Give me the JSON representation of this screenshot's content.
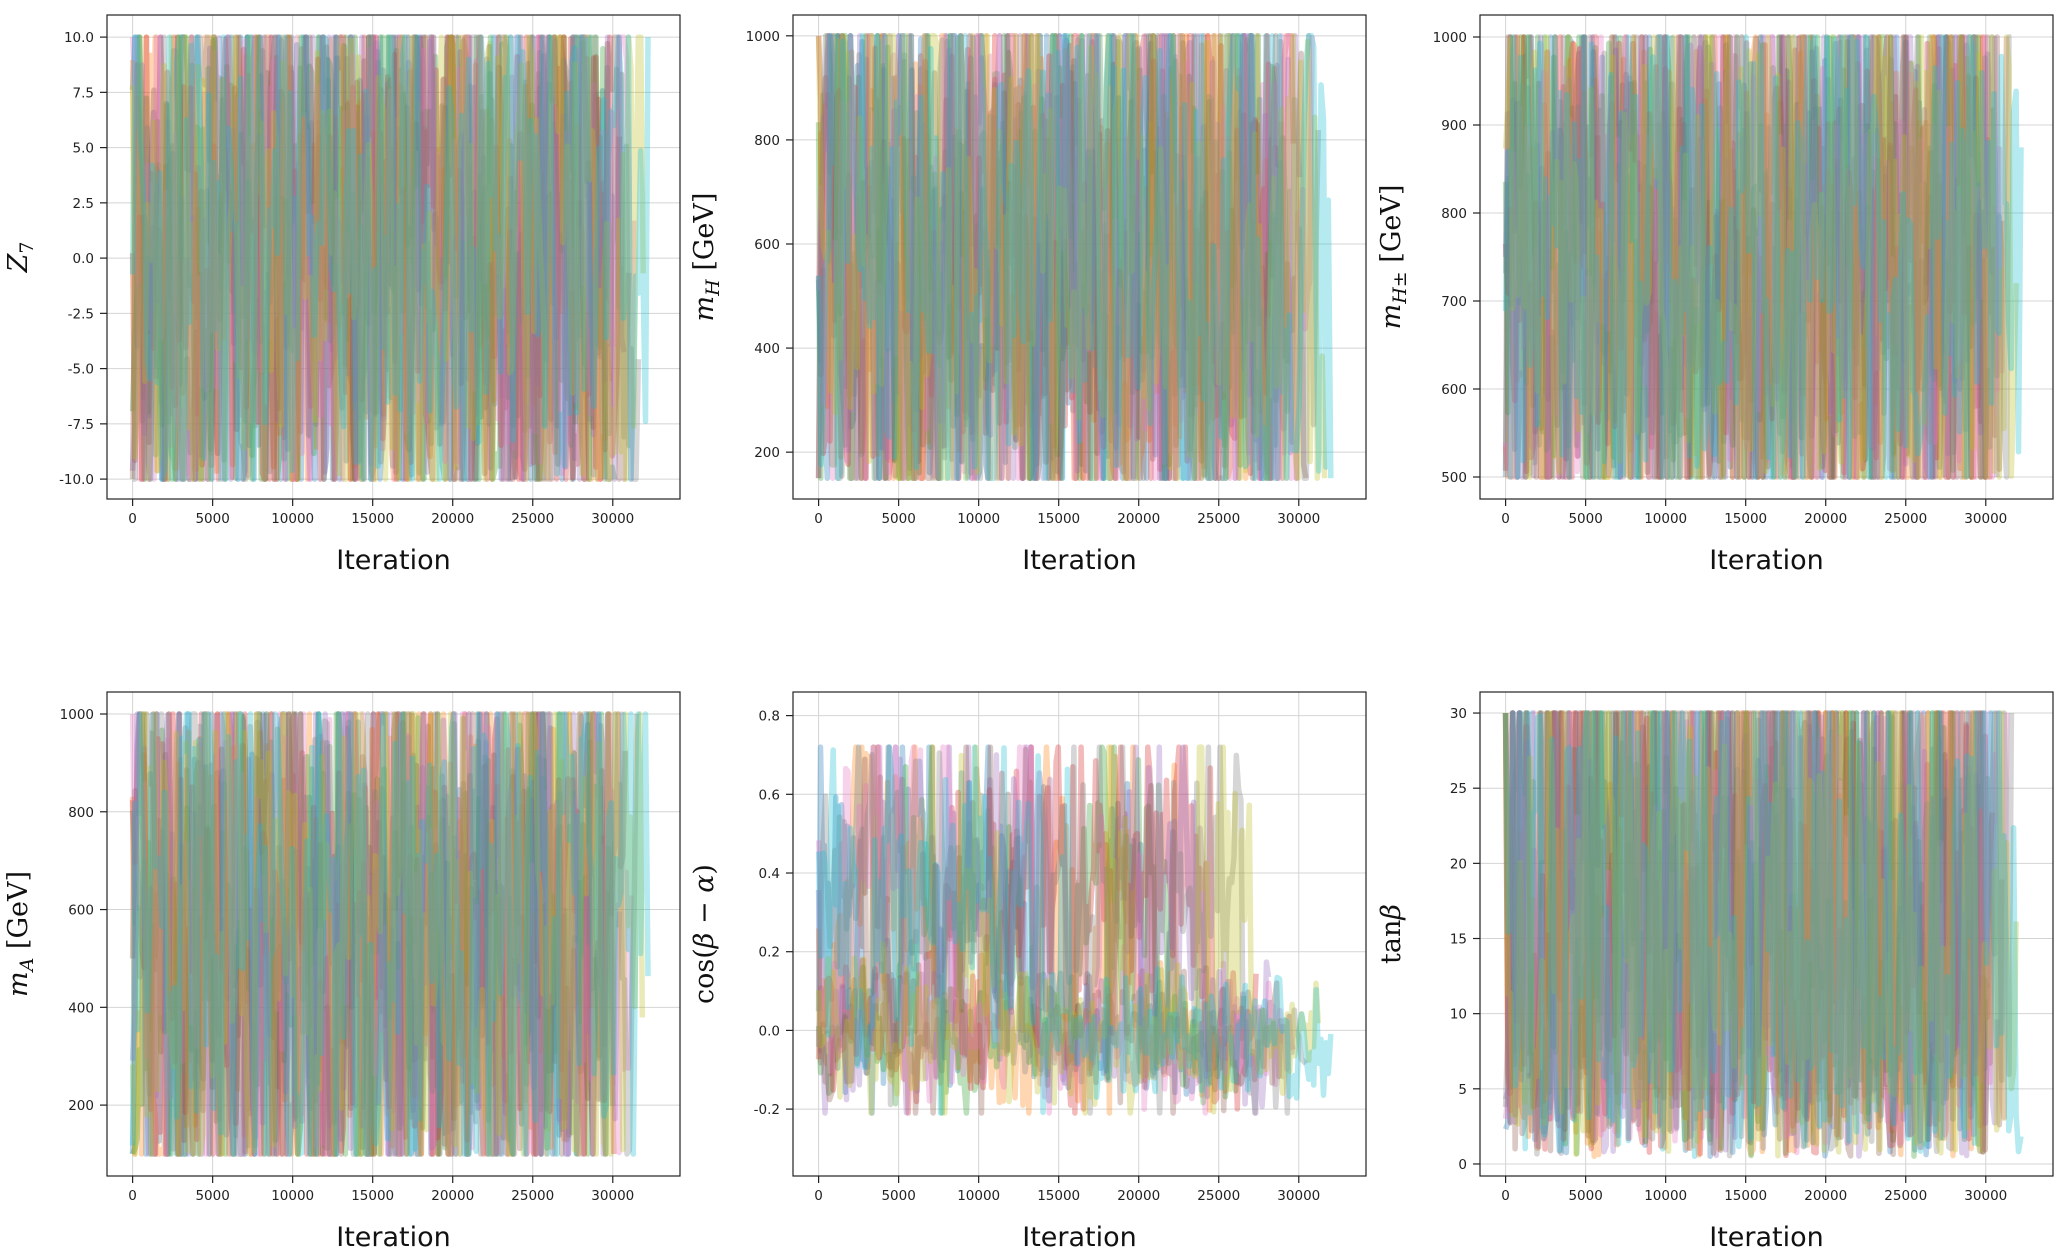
{
  "palette": [
    "#1f77b4",
    "#ff7f0e",
    "#2ca02c",
    "#d62728",
    "#9467bd",
    "#8c564b",
    "#e377c2",
    "#7f7f7f",
    "#bcbd22",
    "#17becf"
  ],
  "chart_data": [
    {
      "type": "line",
      "title": "",
      "xlabel": "Iteration",
      "ylabel": "Z_7",
      "ylabel_parts": [
        {
          "t": "Z",
          "it": true
        },
        {
          "t": "7",
          "sub": true
        }
      ],
      "xlim": [
        -1600,
        34200
      ],
      "ylim": [
        -10.9,
        11.0
      ],
      "xticks": [
        0,
        5000,
        10000,
        15000,
        20000,
        25000,
        30000
      ],
      "xtick_labels": [
        "0",
        "5000",
        "10000",
        "15000",
        "20000",
        "25000",
        "30000"
      ],
      "yticks": [
        -10,
        -7.5,
        -5,
        -2.5,
        0,
        2.5,
        5,
        7.5,
        10
      ],
      "ytick_labels": [
        "-10.0",
        "-7.5",
        "-5.0",
        "-2.5",
        "0.0",
        "2.5",
        "5.0",
        "7.5",
        "10.0"
      ],
      "grid": true,
      "chains": 10,
      "chain_end_range": [
        29500,
        32200
      ],
      "value_range": [
        -10,
        10
      ],
      "trace_pattern": "uniform"
    },
    {
      "type": "line",
      "title": "",
      "xlabel": "Iteration",
      "ylabel": "m_H [GeV]",
      "ylabel_parts": [
        {
          "t": "m",
          "it": true
        },
        {
          "t": "H",
          "sub": true,
          "it": true
        },
        {
          "t": " [GeV]"
        }
      ],
      "xlim": [
        -1600,
        34200
      ],
      "ylim": [
        110,
        1040
      ],
      "xticks": [
        0,
        5000,
        10000,
        15000,
        20000,
        25000,
        30000
      ],
      "xtick_labels": [
        "0",
        "5000",
        "10000",
        "15000",
        "20000",
        "25000",
        "30000"
      ],
      "yticks": [
        200,
        400,
        600,
        800,
        1000
      ],
      "ytick_labels": [
        "200",
        "400",
        "600",
        "800",
        "1000"
      ],
      "grid": true,
      "chains": 10,
      "chain_end_range": [
        28500,
        32000
      ],
      "value_range": [
        150,
        1000
      ],
      "trace_pattern": "uniform"
    },
    {
      "type": "line",
      "title": "",
      "xlabel": "Iteration",
      "ylabel": "m_H± [GeV]",
      "ylabel_parts": [
        {
          "t": "m",
          "it": true
        },
        {
          "t": "H±",
          "sub": true,
          "it": true
        },
        {
          "t": " [GeV]"
        }
      ],
      "xlim": [
        -1600,
        34200
      ],
      "ylim": [
        475,
        1025
      ],
      "xticks": [
        0,
        5000,
        10000,
        15000,
        20000,
        25000,
        30000
      ],
      "xtick_labels": [
        "0",
        "5000",
        "10000",
        "15000",
        "20000",
        "25000",
        "30000"
      ],
      "yticks": [
        500,
        600,
        700,
        800,
        900,
        1000
      ],
      "ytick_labels": [
        "500",
        "600",
        "700",
        "800",
        "900",
        "1000"
      ],
      "grid": true,
      "chains": 10,
      "chain_end_range": [
        29500,
        32200
      ],
      "value_range": [
        500,
        1000
      ],
      "trace_pattern": "uniform"
    },
    {
      "type": "line",
      "title": "",
      "xlabel": "Iteration",
      "ylabel": "m_A [GeV]",
      "ylabel_parts": [
        {
          "t": "m",
          "it": true
        },
        {
          "t": "A",
          "sub": true,
          "it": true
        },
        {
          "t": " [GeV]"
        }
      ],
      "xlim": [
        -1600,
        34200
      ],
      "ylim": [
        55,
        1045
      ],
      "xticks": [
        0,
        5000,
        10000,
        15000,
        20000,
        25000,
        30000
      ],
      "xtick_labels": [
        "0",
        "5000",
        "10000",
        "15000",
        "20000",
        "25000",
        "30000"
      ],
      "yticks": [
        200,
        400,
        600,
        800,
        1000
      ],
      "ytick_labels": [
        "200",
        "400",
        "600",
        "800",
        "1000"
      ],
      "grid": true,
      "chains": 10,
      "chain_end_range": [
        29000,
        32200
      ],
      "value_range": [
        100,
        1000
      ],
      "trace_pattern": "uniform"
    },
    {
      "type": "line",
      "title": "",
      "xlabel": "Iteration",
      "ylabel": "cos(β − α)",
      "ylabel_parts": [
        {
          "t": "cos("
        },
        {
          "t": "β",
          "it": true
        },
        {
          "t": " − "
        },
        {
          "t": "α",
          "it": true
        },
        {
          "t": ")"
        }
      ],
      "xlim": [
        -1600,
        34200
      ],
      "ylim": [
        -0.37,
        0.86
      ],
      "xticks": [
        0,
        5000,
        10000,
        15000,
        20000,
        25000,
        30000
      ],
      "xtick_labels": [
        "0",
        "5000",
        "10000",
        "15000",
        "20000",
        "25000",
        "30000"
      ],
      "yticks": [
        -0.2,
        0.0,
        0.2,
        0.4,
        0.6,
        0.8
      ],
      "ytick_labels": [
        "-0.2",
        "0.0",
        "0.2",
        "0.4",
        "0.6",
        "0.8"
      ],
      "grid": true,
      "chains": 10,
      "chain_end_range": [
        25000,
        32000
      ],
      "value_range": [
        -0.2,
        0.7
      ],
      "trace_pattern": "two-mode"
    },
    {
      "type": "line",
      "title": "",
      "xlabel": "Iteration",
      "ylabel": "tanβ",
      "ylabel_parts": [
        {
          "t": "tan"
        },
        {
          "t": "β",
          "it": true
        }
      ],
      "xlim": [
        -1600,
        34200
      ],
      "ylim": [
        -0.8,
        31.4
      ],
      "xticks": [
        0,
        5000,
        10000,
        15000,
        20000,
        25000,
        30000
      ],
      "xtick_labels": [
        "0",
        "5000",
        "10000",
        "15000",
        "20000",
        "25000",
        "30000"
      ],
      "yticks": [
        0,
        5,
        10,
        15,
        20,
        25,
        30
      ],
      "ytick_labels": [
        "0",
        "5",
        "10",
        "15",
        "20",
        "25",
        "30"
      ],
      "grid": true,
      "chains": 10,
      "chain_end_range": [
        29500,
        32200
      ],
      "value_range": [
        0.5,
        30
      ],
      "trace_pattern": "low-skewed"
    }
  ]
}
